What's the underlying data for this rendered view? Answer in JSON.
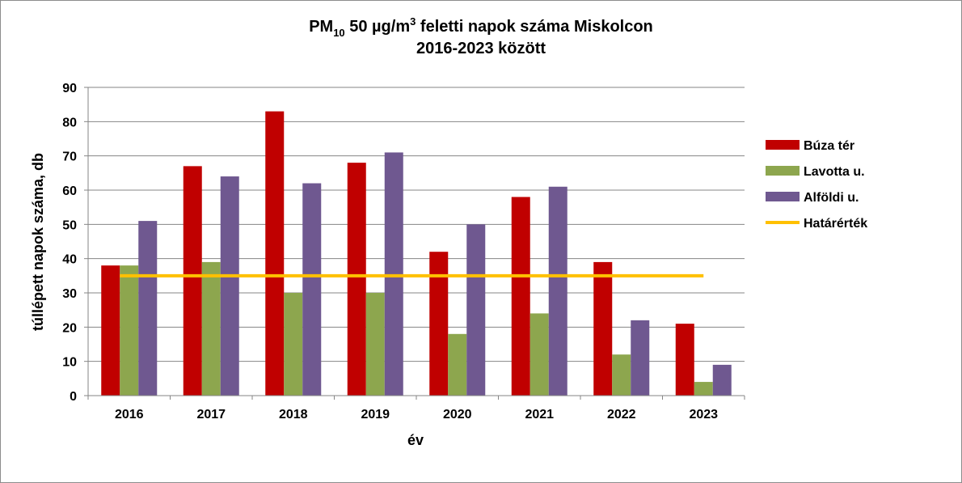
{
  "chart_data": {
    "type": "bar",
    "title_parts": {
      "pm": "PM",
      "pm_sub": "10",
      "value": " 50 µg/m",
      "unit_sup": "3",
      "rest": " feletti napok száma Miskolcon"
    },
    "subtitle": "2016-2023 között",
    "xlabel": "év",
    "ylabel": "túllépett napok száma, db",
    "ylim": [
      0,
      90
    ],
    "ytick_step": 10,
    "yticks": [
      "0",
      "10",
      "20",
      "30",
      "40",
      "50",
      "60",
      "70",
      "80",
      "90"
    ],
    "categories": [
      "2016",
      "2017",
      "2018",
      "2019",
      "2020",
      "2021",
      "2022",
      "2023"
    ],
    "series": [
      {
        "name": "Búza tér",
        "color": "#C00000",
        "values": [
          38,
          67,
          83,
          68,
          42,
          58,
          39,
          21
        ]
      },
      {
        "name": "Lavotta u.",
        "color": "#8DA64E",
        "values": [
          38,
          39,
          30,
          30,
          18,
          24,
          12,
          4
        ]
      },
      {
        "name": "Alföldi u.",
        "color": "#6F5890",
        "values": [
          51,
          64,
          62,
          71,
          50,
          61,
          22,
          9
        ]
      }
    ],
    "threshold": {
      "name": "Határérték",
      "value": 35,
      "color": "#FFC000"
    },
    "grid": true,
    "legend_position": "right"
  }
}
